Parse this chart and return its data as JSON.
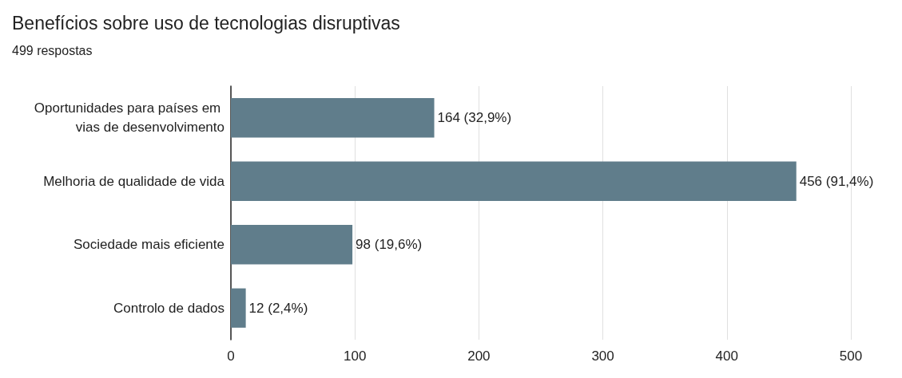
{
  "chart_data": {
    "type": "bar",
    "orientation": "horizontal",
    "title": "Benefícios sobre uso de tecnologias disruptivas",
    "subtitle": "499 respostas",
    "categories": [
      "Oportunidades para países em vias de desenvolvimento",
      "Melhoria de qualidade de vida",
      "Sociedade mais eficiente",
      "Controlo de dados"
    ],
    "values": [
      164,
      456,
      98,
      12
    ],
    "value_labels": [
      "164 (32,9%)",
      "456 (91,4%)",
      "98 (19,6%)",
      "12 (2,4%)"
    ],
    "color": "#607d8b",
    "xlim": [
      0,
      500
    ],
    "xticks": [
      0,
      100,
      200,
      300,
      400,
      500
    ],
    "grid": "x"
  }
}
